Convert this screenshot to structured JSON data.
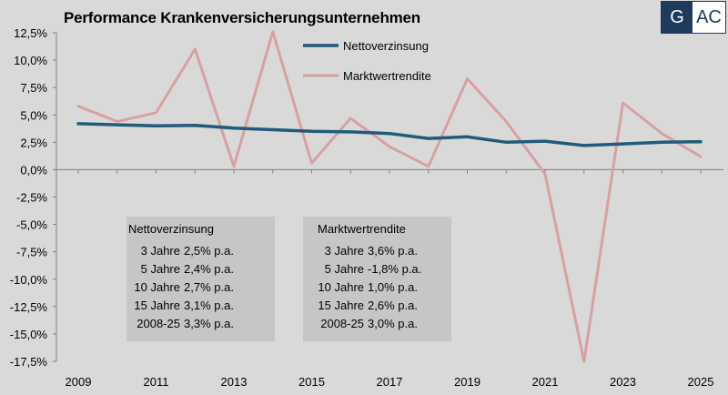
{
  "title": "Performance Krankenversicherungsunternehmen",
  "logo": {
    "left": "G",
    "right": "AC"
  },
  "colors": {
    "background": "#d9d9d9",
    "nettoverzinsung": "#1f5c7a",
    "marktwertrendite": "#d9a0a3",
    "box": "#c6c6c6",
    "logo": "#1f3b5c"
  },
  "chart_data": {
    "type": "line",
    "x": [
      2009,
      2010,
      2011,
      2012,
      2013,
      2014,
      2015,
      2016,
      2017,
      2018,
      2019,
      2020,
      2021,
      2022,
      2023,
      2024,
      2025
    ],
    "x_tick_labels": [
      "2009",
      "2011",
      "2013",
      "2015",
      "2017",
      "2019",
      "2021",
      "2023",
      "2025"
    ],
    "y_tick_labels": [
      "12,5%",
      "10,0%",
      "7,5%",
      "5,0%",
      "2,5%",
      "0,0%",
      "-2,5%",
      "-5,0%",
      "-7,5%",
      "-10,0%",
      "-12,5%",
      "-15,0%",
      "-17,5%"
    ],
    "ylim": [
      -17.5,
      12.5
    ],
    "grid": false,
    "legend_position": "top-center",
    "series": [
      {
        "name": "Nettoverzinsung",
        "color": "#1f5c7a",
        "values": [
          4.2,
          4.1,
          4.0,
          4.05,
          3.8,
          3.65,
          3.5,
          3.45,
          3.3,
          2.85,
          3.0,
          2.5,
          2.6,
          2.2,
          2.35,
          2.5,
          2.55
        ]
      },
      {
        "name": "Marktwertrendite",
        "color": "#d9a0a3",
        "values": [
          5.8,
          4.4,
          5.2,
          11.0,
          0.3,
          12.6,
          0.6,
          4.7,
          2.1,
          0.3,
          8.3,
          4.4,
          -0.4,
          -17.5,
          6.1,
          3.3,
          1.2
        ]
      }
    ]
  },
  "stats": [
    {
      "title": "Nettoverzinsung",
      "rows": [
        {
          "label": "3 Jahre",
          "value": "2,5% p.a."
        },
        {
          "label": "5 Jahre",
          "value": "2,4% p.a."
        },
        {
          "label": "10 Jahre",
          "value": "2,7% p.a."
        },
        {
          "label": "15 Jahre",
          "value": "3,1% p.a."
        },
        {
          "label": "2008-25",
          "value": "3,3% p.a."
        }
      ]
    },
    {
      "title": "Marktwertrendite",
      "rows": [
        {
          "label": "3 Jahre",
          "value": "3,6% p.a."
        },
        {
          "label": "5 Jahre",
          "value": "-1,8% p.a."
        },
        {
          "label": "10 Jahre",
          "value": "1,0% p.a."
        },
        {
          "label": "15 Jahre",
          "value": "2,6% p.a."
        },
        {
          "label": "2008-25",
          "value": "3,0% p.a."
        }
      ]
    }
  ]
}
